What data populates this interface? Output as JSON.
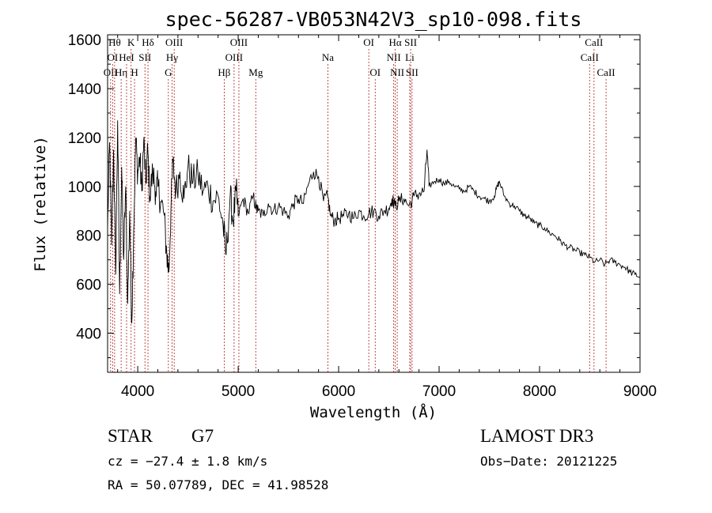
{
  "chart_data": {
    "type": "line",
    "title": "spec-56287-VB053N42V3_sp10-098.fits",
    "xlabel": "Wavelength (Å)",
    "ylabel": "Flux (relative)",
    "xlim": [
      3700,
      9000
    ],
    "ylim": [
      240,
      1620
    ],
    "xticks": [
      4000,
      5000,
      6000,
      7000,
      8000,
      9000
    ],
    "yticks": [
      400,
      600,
      800,
      1000,
      1200,
      1400,
      1600
    ],
    "grid": false,
    "series": [
      {
        "name": "flux",
        "x": [
          3700,
          3720,
          3740,
          3760,
          3780,
          3800,
          3820,
          3840,
          3860,
          3880,
          3900,
          3920,
          3940,
          3960,
          3980,
          4000,
          4020,
          4040,
          4060,
          4080,
          4100,
          4120,
          4150,
          4180,
          4200,
          4230,
          4260,
          4290,
          4310,
          4330,
          4350,
          4380,
          4420,
          4460,
          4500,
          4550,
          4600,
          4650,
          4700,
          4750,
          4800,
          4850,
          4880,
          4920,
          4950,
          4980,
          5000,
          5050,
          5100,
          5150,
          5180,
          5200,
          5250,
          5300,
          5350,
          5400,
          5450,
          5500,
          5550,
          5600,
          5650,
          5700,
          5750,
          5800,
          5850,
          5890,
          5920,
          5960,
          6000,
          6050,
          6100,
          6150,
          6200,
          6250,
          6300,
          6350,
          6400,
          6450,
          6500,
          6530,
          6563,
          6600,
          6650,
          6700,
          6750,
          6800,
          6850,
          6880,
          6900,
          6950,
          7000,
          7050,
          7100,
          7150,
          7200,
          7250,
          7300,
          7350,
          7400,
          7450,
          7500,
          7550,
          7580,
          7600,
          7650,
          7700,
          7750,
          7800,
          7850,
          7900,
          7950,
          8000,
          8050,
          8100,
          8150,
          8200,
          8250,
          8300,
          8350,
          8400,
          8450,
          8500,
          8550,
          8600,
          8650,
          8700,
          8750,
          8800,
          8850,
          8900,
          8950,
          9000
        ],
        "values": [
          820,
          1180,
          760,
          1150,
          640,
          1270,
          560,
          1080,
          700,
          1000,
          520,
          900,
          440,
          820,
          1200,
          1050,
          1120,
          980,
          1190,
          1010,
          1150,
          960,
          1060,
          980,
          1000,
          940,
          890,
          720,
          650,
          900,
          1100,
          980,
          1060,
          950,
          1080,
          1020,
          1050,
          980,
          1000,
          940,
          960,
          840,
          720,
          960,
          860,
          980,
          880,
          950,
          890,
          960,
          910,
          900,
          880,
          930,
          900,
          920,
          900,
          880,
          930,
          950,
          930,
          1010,
          1060,
          1040,
          940,
          960,
          880,
          860,
          870,
          880,
          890,
          870,
          900,
          880,
          890,
          900,
          880,
          900,
          910,
          950,
          920,
          940,
          950,
          920,
          960,
          970,
          980,
          1150,
          1000,
          1020,
          1030,
          1010,
          1020,
          1000,
          990,
          980,
          1000,
          980,
          960,
          950,
          940,
          960,
          1000,
          1020,
          960,
          930,
          920,
          900,
          880,
          870,
          850,
          840,
          830,
          810,
          800,
          780,
          760,
          750,
          740,
          730,
          720,
          710,
          690,
          700,
          680,
          700,
          690,
          680,
          670,
          650,
          640,
          630
        ]
      }
    ],
    "lines": [
      {
        "wl": 3730,
        "labels": [
          "",
          "",
          "OII"
        ],
        "tier": 2
      },
      {
        "wl": 3750,
        "labels": [
          "",
          "OI",
          ""
        ],
        "tier": 1
      },
      {
        "wl": 3770,
        "labels": [
          "Hθ",
          "",
          ""
        ],
        "tier": 0
      },
      {
        "wl": 3835,
        "labels": [
          "",
          "",
          "Hη"
        ],
        "tier": 2
      },
      {
        "wl": 3889,
        "labels": [
          "",
          "HeI",
          ""
        ],
        "tier": 1
      },
      {
        "wl": 3934,
        "labels": [
          "K",
          "",
          ""
        ],
        "tier": 0
      },
      {
        "wl": 3968,
        "labels": [
          "",
          "",
          "H"
        ],
        "tier": 2
      },
      {
        "wl": 4072,
        "labels": [
          "",
          "SII",
          ""
        ],
        "tier": 1
      },
      {
        "wl": 4102,
        "labels": [
          "Hδ",
          "",
          ""
        ],
        "tier": 0
      },
      {
        "wl": 4305,
        "labels": [
          "",
          "",
          "G"
        ],
        "tier": 2
      },
      {
        "wl": 4341,
        "labels": [
          "",
          "Hγ",
          ""
        ],
        "tier": 1
      },
      {
        "wl": 4363,
        "labels": [
          "OIII",
          "",
          ""
        ],
        "tier": 0
      },
      {
        "wl": 4861,
        "labels": [
          "",
          "",
          "Hβ"
        ],
        "tier": 2
      },
      {
        "wl": 4959,
        "labels": [
          "",
          "OIII",
          ""
        ],
        "tier": 1
      },
      {
        "wl": 5007,
        "labels": [
          "OIII",
          "",
          ""
        ],
        "tier": 0
      },
      {
        "wl": 5175,
        "labels": [
          "",
          "",
          "Mg"
        ],
        "tier": 2
      },
      {
        "wl": 5893,
        "labels": [
          "",
          "Na",
          ""
        ],
        "tier": 1
      },
      {
        "wl": 6300,
        "labels": [
          "OI",
          "",
          ""
        ],
        "tier": 0
      },
      {
        "wl": 6364,
        "labels": [
          "",
          "",
          "OI"
        ],
        "tier": 2
      },
      {
        "wl": 6548,
        "labels": [
          "",
          "NII",
          ""
        ],
        "tier": 1
      },
      {
        "wl": 6563,
        "labels": [
          "Hα",
          "",
          ""
        ],
        "tier": 0
      },
      {
        "wl": 6583,
        "labels": [
          "",
          "",
          "NII"
        ],
        "tier": 2
      },
      {
        "wl": 6708,
        "labels": [
          "",
          "Li",
          ""
        ],
        "tier": 1
      },
      {
        "wl": 6717,
        "labels": [
          "SII",
          "",
          ""
        ],
        "tier": 0
      },
      {
        "wl": 6731,
        "labels": [
          "",
          "",
          "SII"
        ],
        "tier": 2
      },
      {
        "wl": 8498,
        "labels": [
          "",
          "CaII",
          ""
        ],
        "tier": 1
      },
      {
        "wl": 8542,
        "labels": [
          "CaII",
          "",
          ""
        ],
        "tier": 0
      },
      {
        "wl": 8662,
        "labels": [
          "",
          "",
          "CaII"
        ],
        "tier": 2
      }
    ]
  },
  "info": {
    "class": "STAR",
    "subclass": "G7",
    "survey": "LAMOST DR3",
    "cz": "cz = −27.4 ± 1.8 km/s",
    "obs_date": "Obs−Date: 20121225",
    "radec": "RA =  50.07789, DEC =  41.98528"
  }
}
